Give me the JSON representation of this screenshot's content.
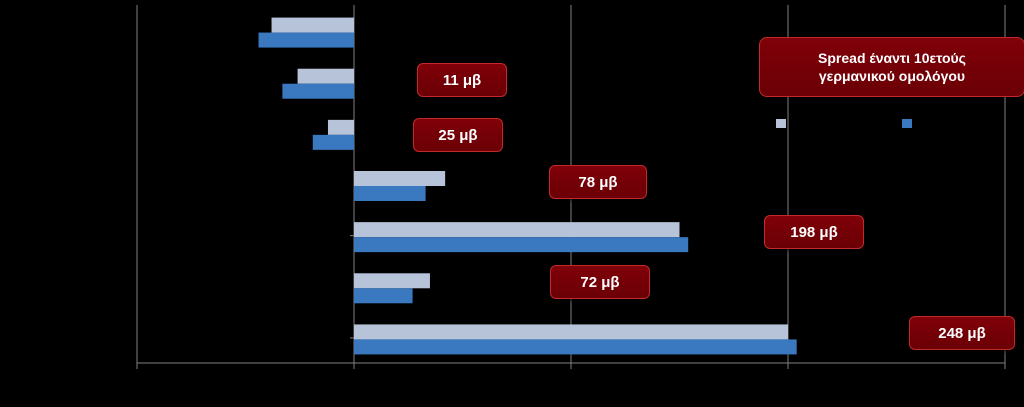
{
  "legend_title_line1": "Spread έναντι 10ετούς",
  "legend_title_line2": "γερμανικού ομολόγου",
  "chart_data": {
    "type": "bar",
    "orientation": "horizontal",
    "title": "",
    "xlabel": "",
    "ylabel": "",
    "grid": true,
    "categories": [
      "",
      "",
      "",
      "",
      "",
      "",
      ""
    ],
    "series": [
      {
        "color": "#b7c3d9",
        "values": [
          -38,
          -26,
          -12,
          42,
          150,
          35,
          200
        ]
      },
      {
        "color": "#3a78c0",
        "values": [
          -44,
          -33,
          -19,
          33,
          154,
          27,
          204
        ]
      }
    ],
    "spread_labels": [
      "",
      "11 μβ",
      "25 μβ",
      "78 μβ",
      "198 μβ",
      "72 μβ",
      "248 μβ"
    ],
    "xlim": [
      -100,
      300
    ],
    "legend": "top-right"
  }
}
